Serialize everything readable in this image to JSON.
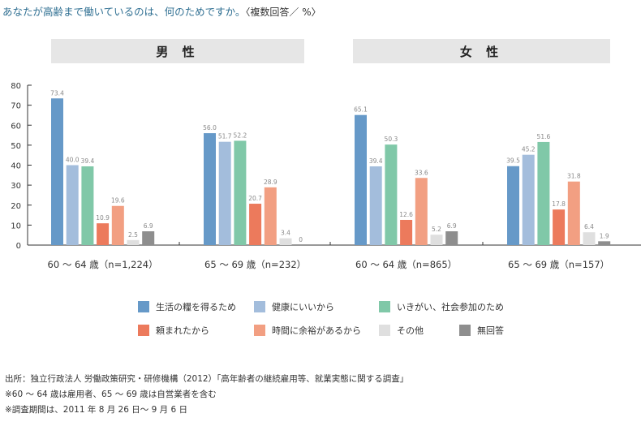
{
  "title": {
    "main": "あなたが高齢まで働いているのは、何のためですか。",
    "unit": "〈複数回答／ %〉"
  },
  "panels": [
    "男 性",
    "女 性"
  ],
  "chart_data": {
    "type": "bar",
    "ylim": [
      0,
      80
    ],
    "yticks": [
      0,
      10,
      20,
      30,
      40,
      50,
      60,
      70,
      80
    ],
    "categories": [
      "60 〜 64 歳（n=1,224）",
      "65 〜 69 歳（n=232）",
      "60 〜 64 歳（n=865）",
      "65 〜 69 歳（n=157）"
    ],
    "groups": [
      "男 性",
      "男 性",
      "女 性",
      "女 性"
    ],
    "series": [
      {
        "name": "生活の糧を得るため",
        "color": "#6699c8",
        "values": [
          73.4,
          56.0,
          65.1,
          39.5
        ],
        "labels": [
          "73.4",
          "56.0",
          "65.1",
          "39.5"
        ]
      },
      {
        "name": "健康にいいから",
        "color": "#a3bddc",
        "values": [
          40.0,
          51.7,
          39.4,
          45.2
        ],
        "labels": [
          "40.0",
          "51.7",
          "39.4",
          "45.2"
        ]
      },
      {
        "name": "いきがい、社会参加のため",
        "color": "#80c8a8",
        "values": [
          39.4,
          52.2,
          50.3,
          51.6
        ],
        "labels": [
          "39.4",
          "52.2",
          "50.3",
          "51.6"
        ]
      },
      {
        "name": "頼まれたから",
        "color": "#ec7a5c",
        "values": [
          10.9,
          20.7,
          12.6,
          17.8
        ],
        "labels": [
          "10.9",
          "20.7",
          "12.6",
          "17.8"
        ]
      },
      {
        "name": "時間に余裕があるから",
        "color": "#f29f82",
        "values": [
          19.6,
          28.9,
          33.6,
          31.8
        ],
        "labels": [
          "19.6",
          "28.9",
          "33.6",
          "31.8"
        ]
      },
      {
        "name": "その他",
        "color": "#dfdfdf",
        "values": [
          2.5,
          3.4,
          5.2,
          6.4
        ],
        "labels": [
          "2.5",
          "3.4",
          "5.2",
          "6.4"
        ]
      },
      {
        "name": "無回答",
        "color": "#8e8e8e",
        "values": [
          6.9,
          0,
          6.9,
          1.9
        ],
        "labels": [
          "6.9",
          "0",
          "6.9",
          "1.9"
        ]
      }
    ],
    "legend_position": "bottom"
  },
  "notes": [
    "出所：独立行政法人 労働政策研究・研修機構（2012）「高年齢者の継続雇用等、就業実態に関する調査」",
    "※60 〜 64 歳は雇用者、65 〜 69 歳は自営業者を含む",
    "※調査期間は、2011 年 8 月 26 日〜 9 月 6 日"
  ]
}
